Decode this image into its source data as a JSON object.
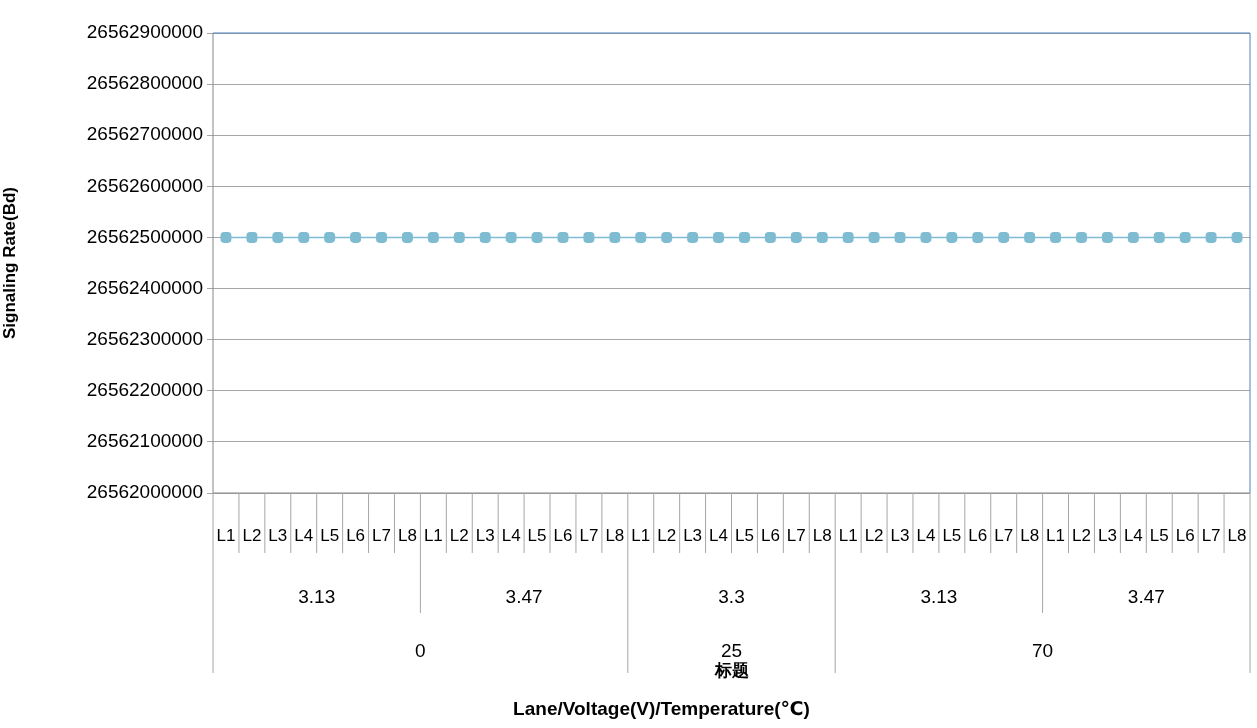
{
  "chart_data": {
    "type": "line",
    "ylabel": "Signaling Rate(Bd)",
    "categories": [
      "L1",
      "L2",
      "L3",
      "L4",
      "L5",
      "L6",
      "L7",
      "L8",
      "L1",
      "L2",
      "L3",
      "L4",
      "L5",
      "L6",
      "L7",
      "L8",
      "L1",
      "L2",
      "L3",
      "L4",
      "L5",
      "L6",
      "L7",
      "L8",
      "L1",
      "L2",
      "L3",
      "L4",
      "L5",
      "L6",
      "L7",
      "L8",
      "L1",
      "L2",
      "L3",
      "L4",
      "L5",
      "L6",
      "L7",
      "L8"
    ],
    "series": [
      {
        "color": "#7fbcd2",
        "values": [
          26562500000,
          26562500000,
          26562500000,
          26562500000,
          26562500000,
          26562500000,
          26562500000,
          26562500000,
          26562500000,
          26562500000,
          26562500000,
          26562500000,
          26562500000,
          26562500000,
          26562500000,
          26562500000,
          26562500000,
          26562500000,
          26562500000,
          26562500000,
          26562500000,
          26562500000,
          26562500000,
          26562500000,
          26562500000,
          26562500000,
          26562500000,
          26562500000,
          26562500000,
          26562500000,
          26562500000,
          26562500000,
          26562500000,
          26562500000,
          26562500000,
          26562500000,
          26562500000,
          26562500000,
          26562500000,
          26562500000
        ]
      }
    ],
    "ylim": [
      26562000000,
      26562900000
    ],
    "yticks": [
      26562000000,
      26562100000,
      26562200000,
      26562300000,
      26562400000,
      26562500000,
      26562600000,
      26562700000,
      26562800000,
      26562900000
    ],
    "grid": "y",
    "legend": false,
    "marker": "square",
    "line_style": "solid",
    "annotations": [
      "3.13",
      "3.47",
      "3.3",
      "3.13",
      "3.47",
      "0",
      "25",
      "70",
      "标题",
      "Lane/Voltage(V)/Temperature(℃)"
    ]
  }
}
